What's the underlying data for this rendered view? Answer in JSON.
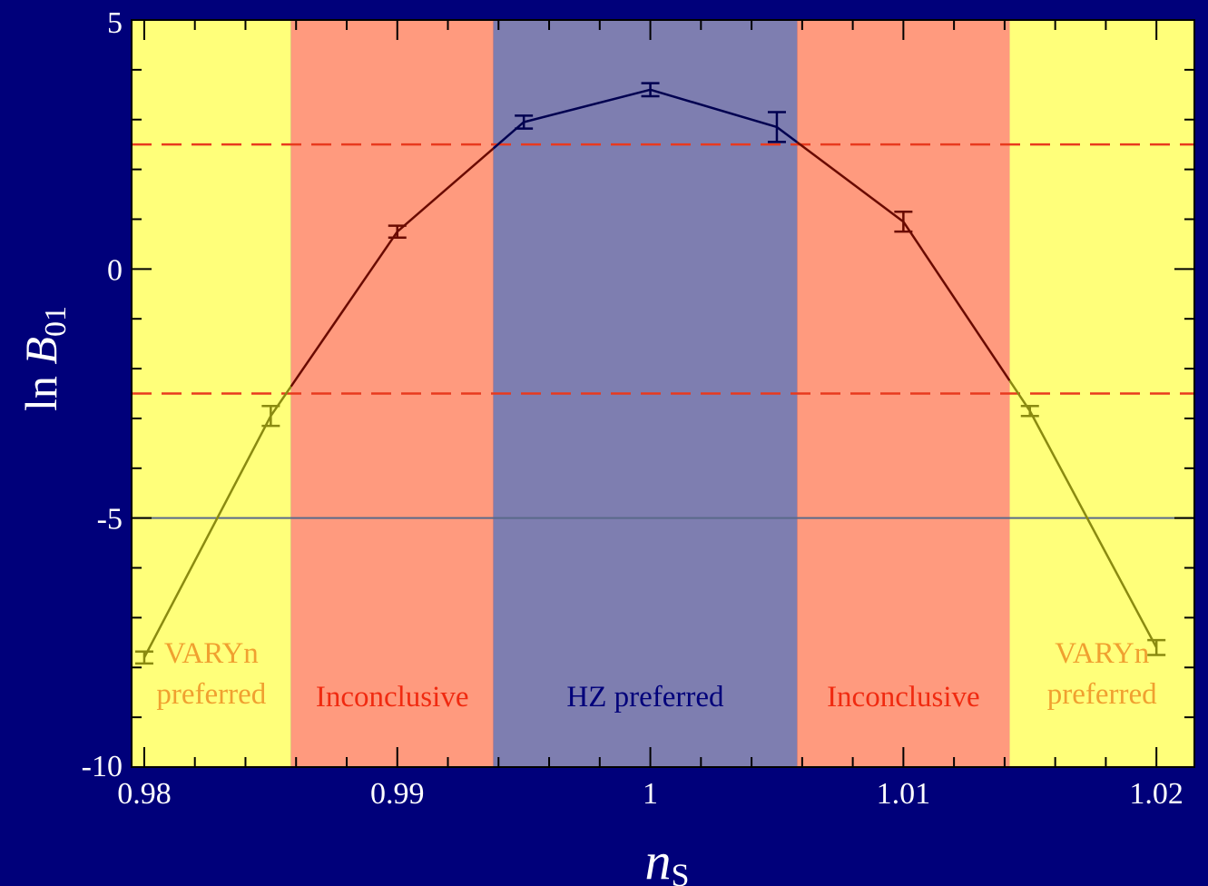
{
  "chart_data": {
    "type": "line",
    "xlabel": {
      "main": "n",
      "sub": "S"
    },
    "ylabel": {
      "main": "ln ",
      "var": "B",
      "sub": "01"
    },
    "xlim": [
      0.9795,
      1.0215
    ],
    "ylim": [
      -10,
      5
    ],
    "x_ticks": [
      0.98,
      0.99,
      1,
      1.01,
      1.02
    ],
    "x_tick_labels": [
      "0.98",
      "0.99",
      "1",
      "1.01",
      "1.02"
    ],
    "y_ticks": [
      -10,
      -5,
      0,
      5
    ],
    "y_tick_labels": [
      "-10",
      "-5",
      "0",
      "5"
    ],
    "series": [
      {
        "x": [
          0.98,
          0.985,
          0.99,
          0.995,
          1.0,
          1.005,
          1.01,
          1.015,
          1.02
        ],
        "y": [
          -7.8,
          -2.95,
          0.75,
          2.95,
          3.6,
          2.85,
          0.95,
          -2.85,
          -7.6
        ],
        "err": [
          0.12,
          0.2,
          0.12,
          0.13,
          0.13,
          0.3,
          0.2,
          0.1,
          0.15
        ]
      }
    ],
    "reference_lines": [
      {
        "y": 2.5,
        "style": "dashed",
        "color": "#e83a1e"
      },
      {
        "y": -2.5,
        "style": "dashed",
        "color": "#e83a1e"
      },
      {
        "y": -5,
        "style": "solid",
        "color": "#5a6a8a"
      }
    ],
    "regions": [
      {
        "x0": 0.9795,
        "x1": 0.9858,
        "color": "#ffff7a",
        "label": [
          "VARYn",
          "preferred"
        ],
        "label_color": "#f0a030"
      },
      {
        "x0": 0.9858,
        "x1": 0.9938,
        "color": "#ff9a7e",
        "label": [
          "Inconclusive"
        ],
        "label_color": "#f02a10"
      },
      {
        "x0": 0.9938,
        "x1": 1.0058,
        "color": "#7e7eb0",
        "label": [
          "HZ preferred"
        ],
        "label_color": "#00007a"
      },
      {
        "x0": 1.0058,
        "x1": 1.0142,
        "color": "#ff9a7e",
        "label": [
          "Inconclusive"
        ],
        "label_color": "#f02a10"
      },
      {
        "x0": 1.0142,
        "x1": 1.0215,
        "color": "#ffff7a",
        "label": [
          "VARYn",
          "preferred"
        ],
        "label_color": "#f0a030"
      }
    ],
    "colors": {
      "background": "#00007a",
      "axis": "#000000",
      "line_in_yellow": "#8a8a10",
      "line_in_red": "#6a0a00",
      "line_in_blue": "#000050"
    }
  }
}
